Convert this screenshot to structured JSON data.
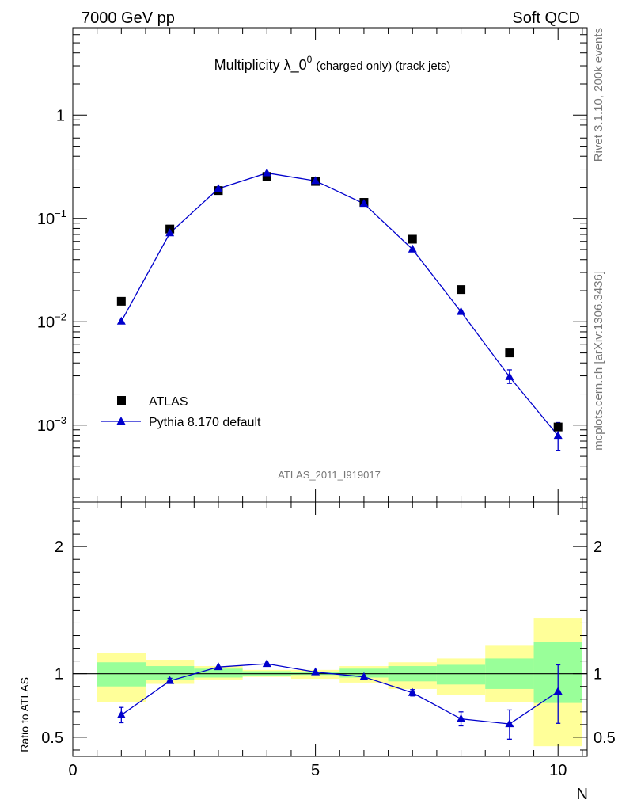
{
  "header": {
    "left": "7000 GeV pp",
    "right": "Soft QCD"
  },
  "title": {
    "main": "Multiplicity λ_0",
    "sup": "0",
    "suffix": "(charged only) (track jets)"
  },
  "side_labels": {
    "rivet": "Rivet 3.1.10,  200k events",
    "mcplots": "mcplots.cern.ch [arXiv:1306.3436]"
  },
  "analysis_id": "ATLAS_2011_I919017",
  "legend": {
    "data_label": "ATLAS",
    "mc_label": "Pythia 8.170 default"
  },
  "colors": {
    "data": "#000000",
    "mc": "#0000cc",
    "band_inner": "#99ff99",
    "band_outer": "#ffff99"
  },
  "chart_data": [
    {
      "type": "scatter",
      "panel": "main",
      "title": "Multiplicity λ_0^0 (charged only) (track jets)",
      "yscale": "log",
      "xlim": [
        0,
        10.6
      ],
      "ylim": [
        0.00018,
        7
      ],
      "y_tick_labels": [
        "1",
        "10^-1",
        "10^-2",
        "10^-3"
      ],
      "legend_position": "bottom-left",
      "series": [
        {
          "name": "ATLAS",
          "marker": "square",
          "x": [
            1,
            2,
            3,
            4,
            5,
            6,
            7,
            8,
            9,
            10
          ],
          "y": [
            0.0158,
            0.079,
            0.186,
            0.255,
            0.228,
            0.143,
            0.063,
            0.0205,
            0.005,
            0.00096
          ]
        },
        {
          "name": "Pythia 8.170 default",
          "marker": "triangle",
          "x": [
            1,
            2,
            3,
            4,
            5,
            6,
            7,
            8,
            9,
            10
          ],
          "y": [
            0.0101,
            0.0722,
            0.194,
            0.275,
            0.231,
            0.139,
            0.0503,
            0.0125,
            0.00293,
            0.00079
          ],
          "yerr_low": [
            0,
            0,
            0,
            0,
            0,
            0,
            0,
            0,
            0.0004,
            0.00022
          ],
          "yerr_high": [
            0,
            0,
            0,
            0,
            0,
            0,
            0,
            0,
            0.0005,
            0.00027
          ]
        }
      ]
    },
    {
      "type": "scatter",
      "panel": "ratio",
      "ylabel": "Ratio to ATLAS",
      "xlabel": "N",
      "xlim": [
        0,
        10.6
      ],
      "ylim": [
        0.35,
        2.35
      ],
      "x_ticks": [
        0,
        5,
        10
      ],
      "y_ticks": [
        0.5,
        1,
        2
      ],
      "bands": {
        "x_low": [
          0.5,
          1.5,
          2.5,
          3.5,
          4.5,
          5.5,
          6.5,
          7.5,
          8.5,
          9.5
        ],
        "x_high": [
          1.5,
          2.5,
          3.5,
          4.5,
          5.5,
          6.5,
          7.5,
          8.5,
          9.5,
          10.5
        ],
        "inner_low": [
          0.9,
          0.95,
          0.97,
          0.985,
          0.99,
          0.97,
          0.94,
          0.915,
          0.88,
          0.77
        ],
        "inner_high": [
          1.09,
          1.06,
          1.04,
          1.02,
          1.015,
          1.04,
          1.06,
          1.07,
          1.12,
          1.25
        ],
        "outer_low": [
          0.78,
          0.92,
          0.955,
          0.975,
          0.96,
          0.93,
          0.88,
          0.83,
          0.78,
          0.43
        ],
        "outer_high": [
          1.16,
          1.11,
          1.06,
          1.03,
          1.03,
          1.06,
          1.09,
          1.12,
          1.22,
          1.44
        ]
      },
      "series": [
        {
          "name": "Pythia 8.170 default",
          "marker": "triangle",
          "x": [
            1,
            2,
            3,
            4,
            5,
            6,
            7,
            8,
            9,
            10
          ],
          "y": [
            0.675,
            0.944,
            1.053,
            1.078,
            1.013,
            0.975,
            0.85,
            0.645,
            0.605,
            0.86
          ],
          "yerr_low": [
            0.06,
            0.02,
            0.01,
            0.01,
            0.01,
            0.01,
            0.025,
            0.055,
            0.12,
            0.25
          ],
          "yerr_high": [
            0.06,
            0.02,
            0.01,
            0.01,
            0.01,
            0.01,
            0.025,
            0.055,
            0.11,
            0.21
          ]
        }
      ]
    }
  ]
}
